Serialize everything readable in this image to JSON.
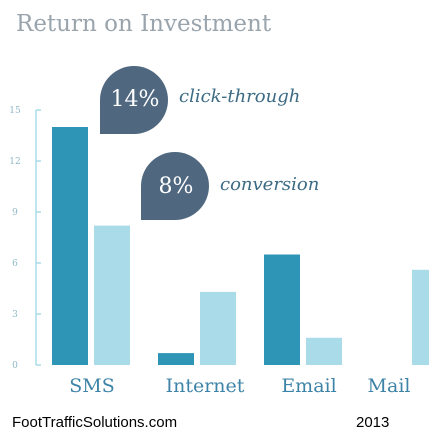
{
  "chart_data": {
    "type": "bar",
    "title": "Return on Investment",
    "categories": [
      "SMS",
      "Internet",
      "Email",
      "Mail"
    ],
    "series": [
      {
        "values": [
          14,
          0.7,
          6.5,
          0
        ]
      },
      {
        "values": [
          8.2,
          4.3,
          1.6,
          5.6
        ]
      }
    ],
    "ylim": [
      0,
      15
    ],
    "yticks": [
      "0",
      "3",
      "6",
      "9",
      "12",
      "15"
    ],
    "ytick_values": [
      0,
      3,
      6,
      9,
      12,
      15
    ],
    "grid": false,
    "colors": {
      "primary": "#2f95b7",
      "secondary": "#a9dbe8",
      "axis": "#a9dbe8",
      "bubble": "#4f6880"
    },
    "annotations": [
      {
        "value": "14%",
        "label": "click-through"
      },
      {
        "value": "8%",
        "label": "conversion"
      }
    ]
  },
  "footer": {
    "source": "FootTrafficSolutions.com",
    "year": "2013"
  }
}
